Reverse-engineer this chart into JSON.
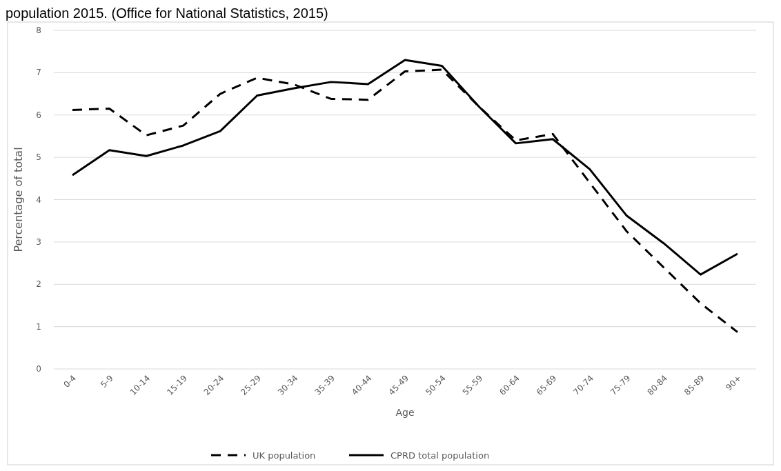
{
  "chart_data": {
    "type": "line",
    "title": "population 2015. (Office for National Statistics, 2015)",
    "xlabel": "Age",
    "ylabel": "Percentage of total",
    "categories": [
      "0-4",
      "5-9",
      "10-14",
      "15-19",
      "20-24",
      "25-29",
      "30-34",
      "35-39",
      "40-44",
      "45-49",
      "50-54",
      "55-59",
      "60-64",
      "65-69",
      "70-74",
      "75-79",
      "80-84",
      "85-89",
      "90+"
    ],
    "series": [
      {
        "name": "UK population",
        "color": "#000000",
        "line_style": "dashed",
        "values": [
          6.12,
          6.15,
          5.52,
          5.75,
          6.5,
          6.88,
          6.72,
          6.38,
          6.36,
          7.03,
          7.07,
          6.2,
          5.4,
          5.55,
          4.4,
          3.25,
          2.4,
          1.55,
          0.87
        ]
      },
      {
        "name": "CPRD total population",
        "color": "#000000",
        "line_style": "solid",
        "values": [
          4.58,
          5.17,
          5.03,
          5.28,
          5.62,
          6.46,
          6.63,
          6.78,
          6.73,
          7.3,
          7.16,
          6.2,
          5.33,
          5.43,
          4.72,
          3.62,
          2.97,
          2.23,
          2.72
        ]
      }
    ],
    "ylim": [
      0,
      8
    ],
    "yticks": [
      0,
      1,
      2,
      3,
      4,
      5,
      6,
      7,
      8
    ],
    "grid": "y",
    "legend": "bottom",
    "marker": "none"
  }
}
